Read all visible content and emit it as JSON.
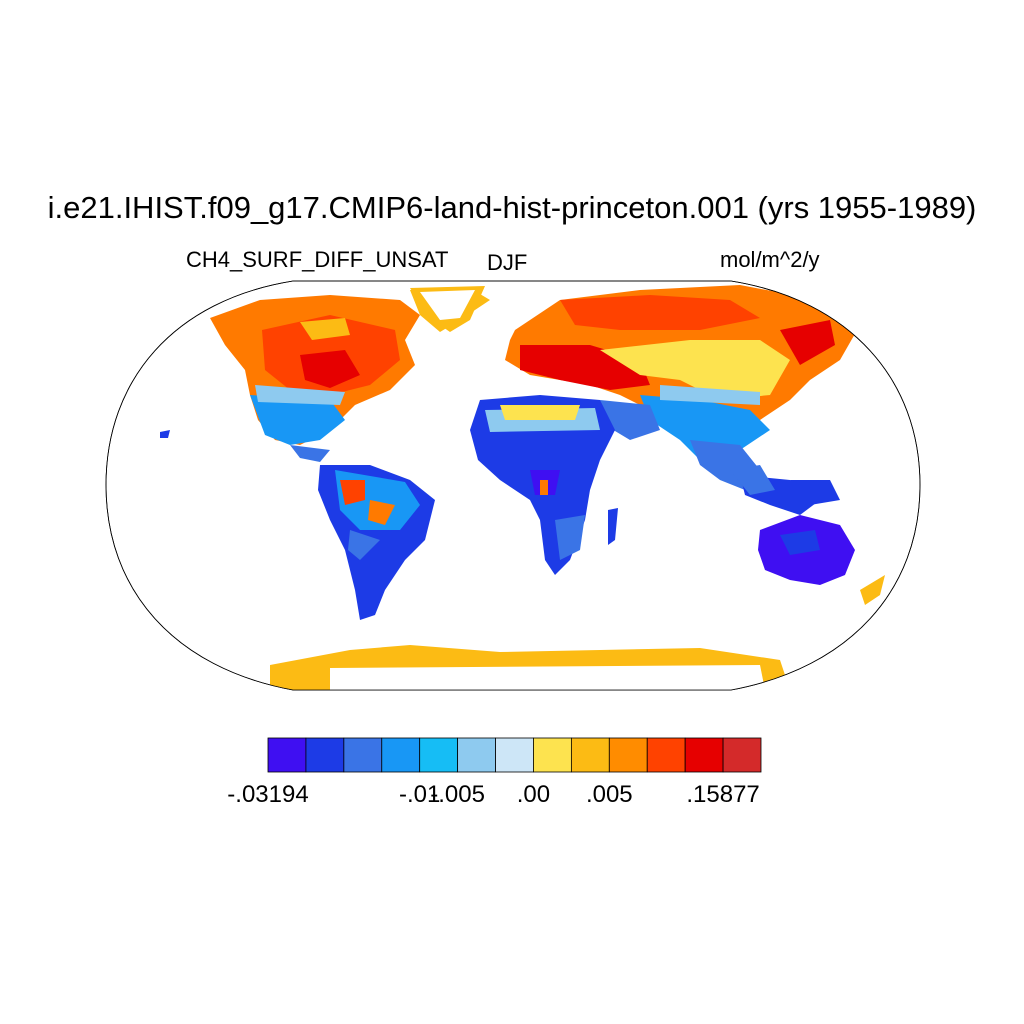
{
  "title": "i.e21.IHIST.f09_g17.CMIP6-land-hist-princeton.001 (yrs 1955-1989)",
  "variable": "CH4_SURF_DIFF_UNSAT",
  "season": "DJF",
  "units": "mol/m^2/y",
  "colorbar": {
    "colors": [
      "#3f0ff2",
      "#1d3be6",
      "#3a74e6",
      "#1897f5",
      "#16bdf5",
      "#8ecaef",
      "#cde6f7",
      "#fde34f",
      "#fcbb14",
      "#ff8c00",
      "#ff4200",
      "#e60000",
      "#d42a2a"
    ],
    "labels": [
      {
        "text": "-.03194",
        "boundary": 0
      },
      {
        "text": "-.01",
        "boundary": 4
      },
      {
        "text": "-.005",
        "boundary": 5
      },
      {
        "text": ".00",
        "boundary": 7
      },
      {
        "text": ".005",
        "boundary": 9
      },
      {
        "text": ".15877",
        "boundary": 12
      }
    ]
  }
}
